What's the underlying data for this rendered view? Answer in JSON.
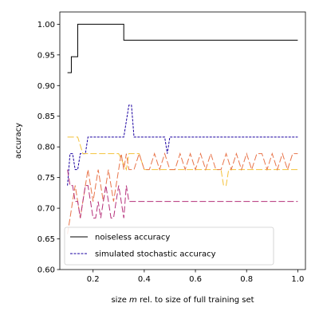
{
  "chart_data": {
    "type": "line",
    "title": "",
    "xlabel_prefix": "size ",
    "xlabel_var": "m",
    "xlabel_suffix": " rel. to size of full training set",
    "ylabel": "accuracy",
    "xlim": [
      0.07,
      1.03
    ],
    "ylim": [
      0.6,
      1.02
    ],
    "xticks": [
      0.2,
      0.4,
      0.6,
      0.8,
      1.0
    ],
    "xtick_labels": [
      "0.2",
      "0.4",
      "0.6",
      "0.8",
      "1.0"
    ],
    "yticks": [
      0.6,
      0.65,
      0.7,
      0.75,
      0.8,
      0.85,
      0.9,
      0.95,
      1.0
    ],
    "ytick_labels": [
      "0.60",
      "0.65",
      "0.70",
      "0.75",
      "0.80",
      "0.85",
      "0.90",
      "0.95",
      "1.00"
    ],
    "grid": false,
    "legend_position": "lower-left",
    "series": [
      {
        "name": "noiseless accuracy",
        "color": "#000000",
        "dash": "solid",
        "in_legend": true,
        "x": [
          0.1,
          0.115,
          0.115,
          0.14,
          0.14,
          0.16,
          0.16,
          0.32,
          0.32,
          1.0
        ],
        "y": [
          0.921,
          0.921,
          0.947,
          0.947,
          1.0,
          1.0,
          1.0,
          1.0,
          0.974,
          0.974
        ]
      },
      {
        "name": "simulated stochastic accuracy",
        "color": "#1a00a0",
        "dash": "dashed",
        "in_legend": true,
        "x": [
          0.1,
          0.11,
          0.12,
          0.13,
          0.14,
          0.15,
          0.16,
          0.17,
          0.18,
          0.2,
          0.22,
          0.26,
          0.3,
          0.32,
          0.33,
          0.34,
          0.35,
          0.36,
          0.4,
          0.48,
          0.49,
          0.5,
          0.55,
          0.7,
          0.85,
          1.0
        ],
        "y": [
          0.737,
          0.789,
          0.789,
          0.763,
          0.763,
          0.789,
          0.789,
          0.789,
          0.816,
          0.816,
          0.816,
          0.816,
          0.816,
          0.816,
          0.842,
          0.868,
          0.868,
          0.816,
          0.816,
          0.816,
          0.789,
          0.816,
          0.816,
          0.816,
          0.816,
          0.816
        ]
      },
      {
        "name": "",
        "color": "#f4c23a",
        "dash": "dashed",
        "in_legend": false,
        "x": [
          0.1,
          0.14,
          0.16,
          0.2,
          0.25,
          0.3,
          0.33,
          0.34,
          0.38,
          0.4,
          0.45,
          0.5,
          0.55,
          0.6,
          0.65,
          0.7,
          0.71,
          0.72,
          0.73,
          0.75,
          0.8,
          0.85,
          0.9,
          1.0
        ],
        "y": [
          0.816,
          0.816,
          0.789,
          0.789,
          0.789,
          0.789,
          0.763,
          0.789,
          0.789,
          0.763,
          0.763,
          0.763,
          0.763,
          0.763,
          0.763,
          0.763,
          0.737,
          0.737,
          0.763,
          0.763,
          0.763,
          0.763,
          0.763,
          0.763
        ]
      },
      {
        "name": "",
        "color": "#e8744a",
        "dash": "dashed",
        "in_legend": false,
        "x": [
          0.1,
          0.11,
          0.12,
          0.13,
          0.14,
          0.15,
          0.16,
          0.17,
          0.18,
          0.19,
          0.2,
          0.21,
          0.22,
          0.23,
          0.24,
          0.25,
          0.26,
          0.27,
          0.28,
          0.29,
          0.3,
          0.31,
          0.32,
          0.33,
          0.34,
          0.36,
          0.38,
          0.4,
          0.42,
          0.44,
          0.46,
          0.48,
          0.5,
          0.52,
          0.54,
          0.56,
          0.58,
          0.6,
          0.62,
          0.64,
          0.66,
          0.68,
          0.7,
          0.72,
          0.74,
          0.76,
          0.78,
          0.8,
          0.82,
          0.84,
          0.86,
          0.88,
          0.9,
          0.92,
          0.94,
          0.96,
          0.98,
          1.0
        ],
        "y": [
          0.658,
          0.684,
          0.711,
          0.737,
          0.711,
          0.684,
          0.711,
          0.737,
          0.763,
          0.737,
          0.711,
          0.737,
          0.763,
          0.737,
          0.711,
          0.737,
          0.763,
          0.737,
          0.711,
          0.737,
          0.763,
          0.789,
          0.763,
          0.789,
          0.763,
          0.763,
          0.789,
          0.763,
          0.763,
          0.789,
          0.763,
          0.789,
          0.763,
          0.763,
          0.789,
          0.763,
          0.789,
          0.763,
          0.789,
          0.763,
          0.789,
          0.763,
          0.763,
          0.789,
          0.763,
          0.789,
          0.763,
          0.789,
          0.763,
          0.789,
          0.789,
          0.763,
          0.789,
          0.763,
          0.789,
          0.763,
          0.789,
          0.789
        ]
      },
      {
        "name": "",
        "color": "#b5307a",
        "dash": "dashed",
        "in_legend": false,
        "x": [
          0.1,
          0.11,
          0.12,
          0.13,
          0.14,
          0.15,
          0.16,
          0.17,
          0.18,
          0.19,
          0.2,
          0.21,
          0.22,
          0.23,
          0.24,
          0.25,
          0.26,
          0.27,
          0.28,
          0.29,
          0.3,
          0.31,
          0.32,
          0.33,
          0.34,
          0.4,
          0.5,
          0.6,
          0.7,
          0.8,
          0.9,
          1.0
        ],
        "y": [
          0.763,
          0.737,
          0.737,
          0.711,
          0.711,
          0.684,
          0.711,
          0.737,
          0.737,
          0.711,
          0.684,
          0.684,
          0.711,
          0.684,
          0.711,
          0.737,
          0.711,
          0.684,
          0.684,
          0.711,
          0.737,
          0.711,
          0.684,
          0.737,
          0.711,
          0.711,
          0.711,
          0.711,
          0.711,
          0.711,
          0.711,
          0.711
        ]
      }
    ]
  }
}
